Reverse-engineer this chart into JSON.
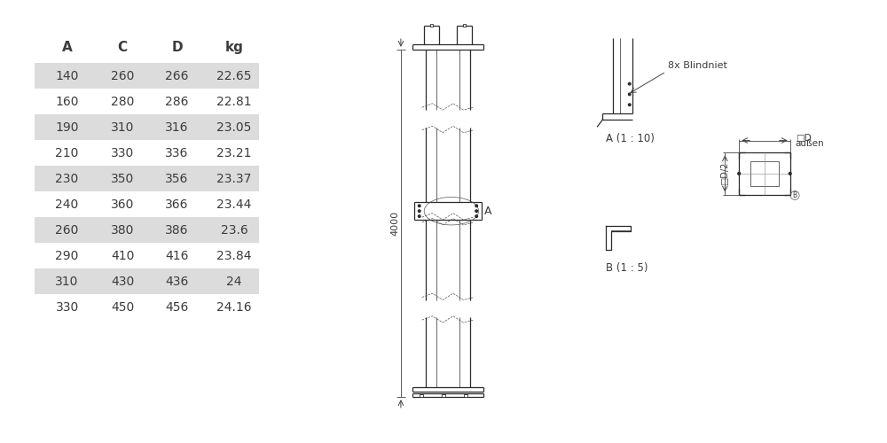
{
  "table_headers": [
    "A",
    "C",
    "D",
    "kg"
  ],
  "table_data": [
    [
      140,
      260,
      266,
      "22.65"
    ],
    [
      160,
      280,
      286,
      "22.81"
    ],
    [
      190,
      310,
      316,
      "23.05"
    ],
    [
      210,
      330,
      336,
      "23.21"
    ],
    [
      230,
      350,
      356,
      "23.37"
    ],
    [
      240,
      360,
      366,
      "23.44"
    ],
    [
      260,
      380,
      386,
      "23.6"
    ],
    [
      290,
      410,
      416,
      "23.84"
    ],
    [
      310,
      430,
      436,
      "24"
    ],
    [
      330,
      450,
      456,
      "24.16"
    ]
  ],
  "shaded_rows": [
    0,
    2,
    4,
    6,
    8
  ],
  "row_bg_shaded": "#dcdcdc",
  "row_bg_plain": "#ffffff",
  "text_color": "#3c3c3c",
  "header_font_size": 11,
  "cell_font_size": 10,
  "bg_color": "#ffffff",
  "dimension_label": "4000",
  "label_A": "A",
  "label_A_detail": "A (1 : 10)",
  "label_B_detail": "B (1 : 5)",
  "label_blindniet": "8x Blindniet",
  "label_D_aussen_1": "□D",
  "label_D_aussen_2": "außen",
  "label_D2": "□D/2"
}
